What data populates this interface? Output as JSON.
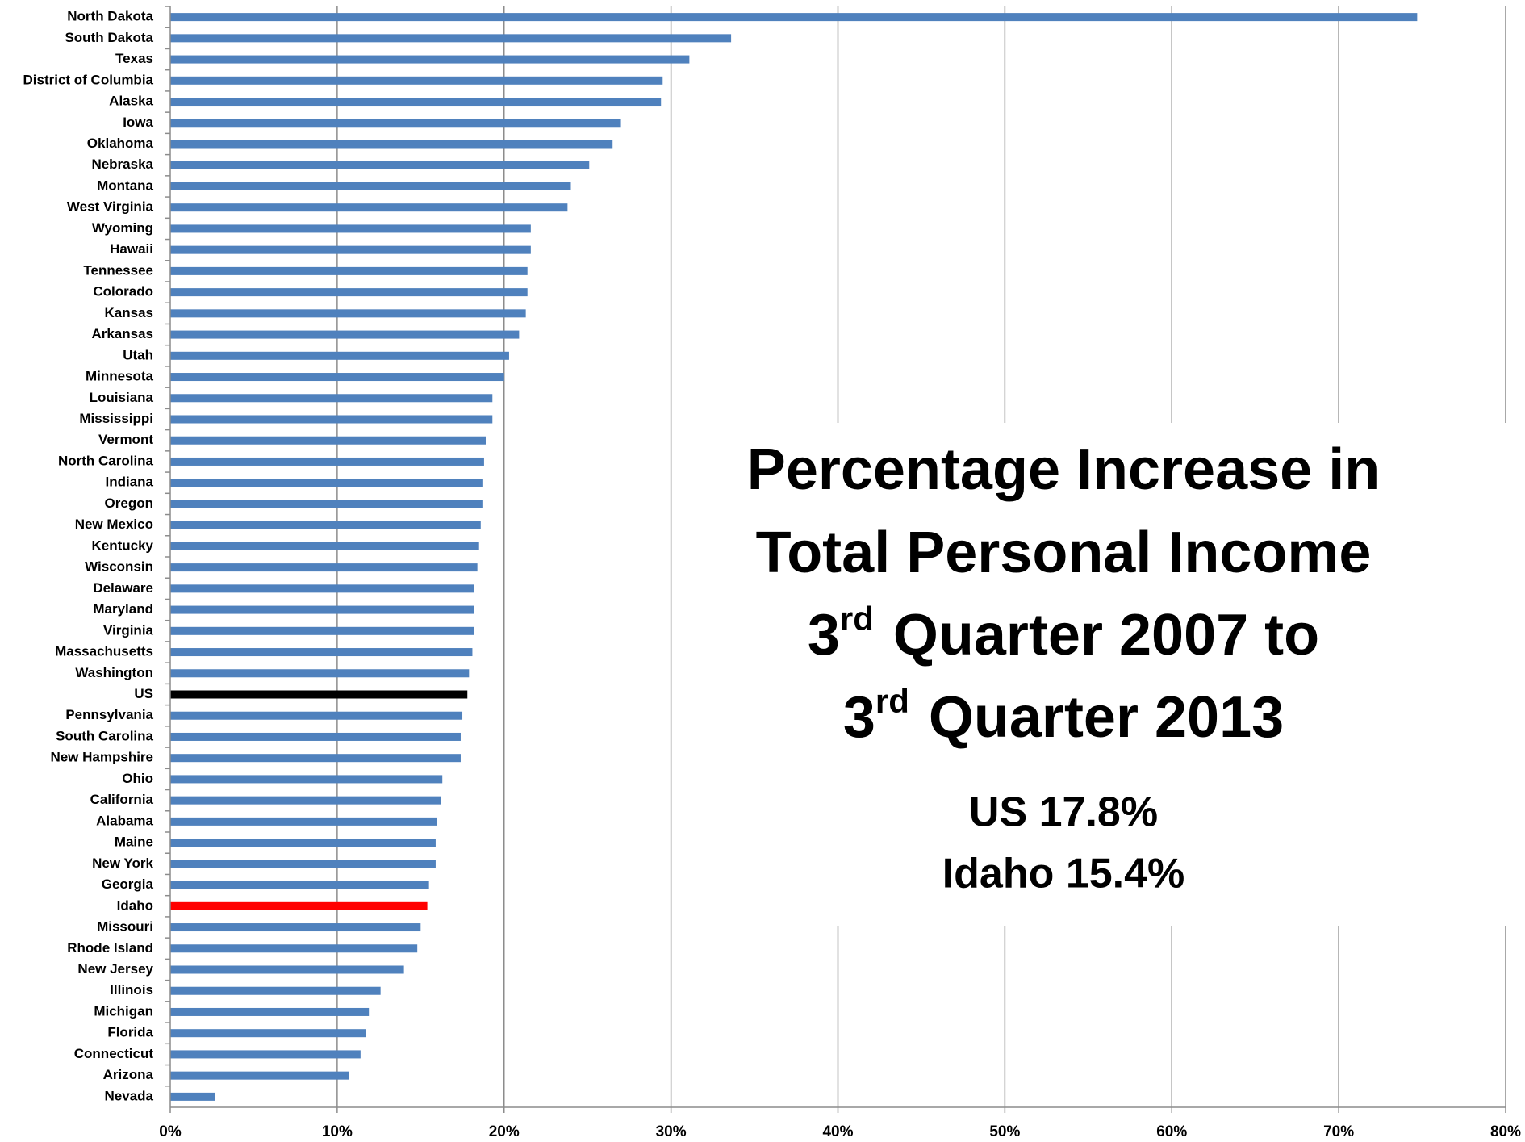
{
  "chart_data": {
    "type": "barh",
    "title": [
      "Percentage Increase in",
      "Total Personal Income",
      {
        "num": "3",
        "sup": "rd",
        "text": "Quarter 2007 to"
      },
      {
        "num": "3",
        "sup": "rd",
        "text": "Quarter 2013"
      }
    ],
    "annotations": [
      "US 17.8%",
      "Idaho 15.4%"
    ],
    "categories": [
      "North Dakota",
      "South Dakota",
      "Texas",
      "District of Columbia",
      "Alaska",
      "Iowa",
      "Oklahoma",
      "Nebraska",
      "Montana",
      "West Virginia",
      "Wyoming",
      "Hawaii",
      "Tennessee",
      "Colorado",
      "Kansas",
      "Arkansas",
      "Utah",
      "Minnesota",
      "Louisiana",
      "Mississippi",
      "Vermont",
      "North Carolina",
      "Indiana",
      "Oregon",
      "New Mexico",
      "Kentucky",
      "Wisconsin",
      "Delaware",
      "Maryland",
      "Virginia",
      "Massachusetts",
      "Washington",
      "US",
      "Pennsylvania",
      "South Carolina",
      "New Hampshire",
      "Ohio",
      "California",
      "Alabama",
      "Maine",
      "New York",
      "Georgia",
      "Idaho",
      "Missouri",
      "Rhode Island",
      "New Jersey",
      "Illinois",
      "Michigan",
      "Florida",
      "Connecticut",
      "Arizona",
      "Nevada"
    ],
    "values": [
      74.7,
      33.6,
      31.1,
      29.5,
      29.4,
      27.0,
      26.5,
      25.1,
      24.0,
      23.8,
      21.6,
      21.6,
      21.4,
      21.4,
      21.3,
      20.9,
      20.3,
      20.0,
      19.3,
      19.3,
      18.9,
      18.8,
      18.7,
      18.7,
      18.6,
      18.5,
      18.4,
      18.2,
      18.2,
      18.2,
      18.1,
      17.9,
      17.8,
      17.5,
      17.4,
      17.4,
      16.3,
      16.2,
      16.0,
      15.9,
      15.9,
      15.5,
      15.4,
      15.0,
      14.8,
      14.0,
      12.6,
      11.9,
      11.7,
      11.4,
      10.7,
      2.7
    ],
    "colors": [
      "#4f81bd",
      "#4f81bd",
      "#4f81bd",
      "#4f81bd",
      "#4f81bd",
      "#4f81bd",
      "#4f81bd",
      "#4f81bd",
      "#4f81bd",
      "#4f81bd",
      "#4f81bd",
      "#4f81bd",
      "#4f81bd",
      "#4f81bd",
      "#4f81bd",
      "#4f81bd",
      "#4f81bd",
      "#4f81bd",
      "#4f81bd",
      "#4f81bd",
      "#4f81bd",
      "#4f81bd",
      "#4f81bd",
      "#4f81bd",
      "#4f81bd",
      "#4f81bd",
      "#4f81bd",
      "#4f81bd",
      "#4f81bd",
      "#4f81bd",
      "#4f81bd",
      "#4f81bd",
      "#000000",
      "#4f81bd",
      "#4f81bd",
      "#4f81bd",
      "#4f81bd",
      "#4f81bd",
      "#4f81bd",
      "#4f81bd",
      "#4f81bd",
      "#4f81bd",
      "#ff0000",
      "#4f81bd",
      "#4f81bd",
      "#4f81bd",
      "#4f81bd",
      "#4f81bd",
      "#4f81bd",
      "#4f81bd",
      "#4f81bd",
      "#4f81bd"
    ],
    "xlim": [
      0,
      80
    ],
    "xticks": [
      {
        "value": 0,
        "label": "0%"
      },
      {
        "value": 10,
        "label": "10%"
      },
      {
        "value": 20,
        "label": "20%"
      },
      {
        "value": 30,
        "label": "30%"
      },
      {
        "value": 40,
        "label": "40%"
      },
      {
        "value": 50,
        "label": "50%"
      },
      {
        "value": 60,
        "label": "60%"
      },
      {
        "value": 70,
        "label": "70%"
      },
      {
        "value": 80,
        "label": "80%"
      }
    ],
    "grid": true
  }
}
